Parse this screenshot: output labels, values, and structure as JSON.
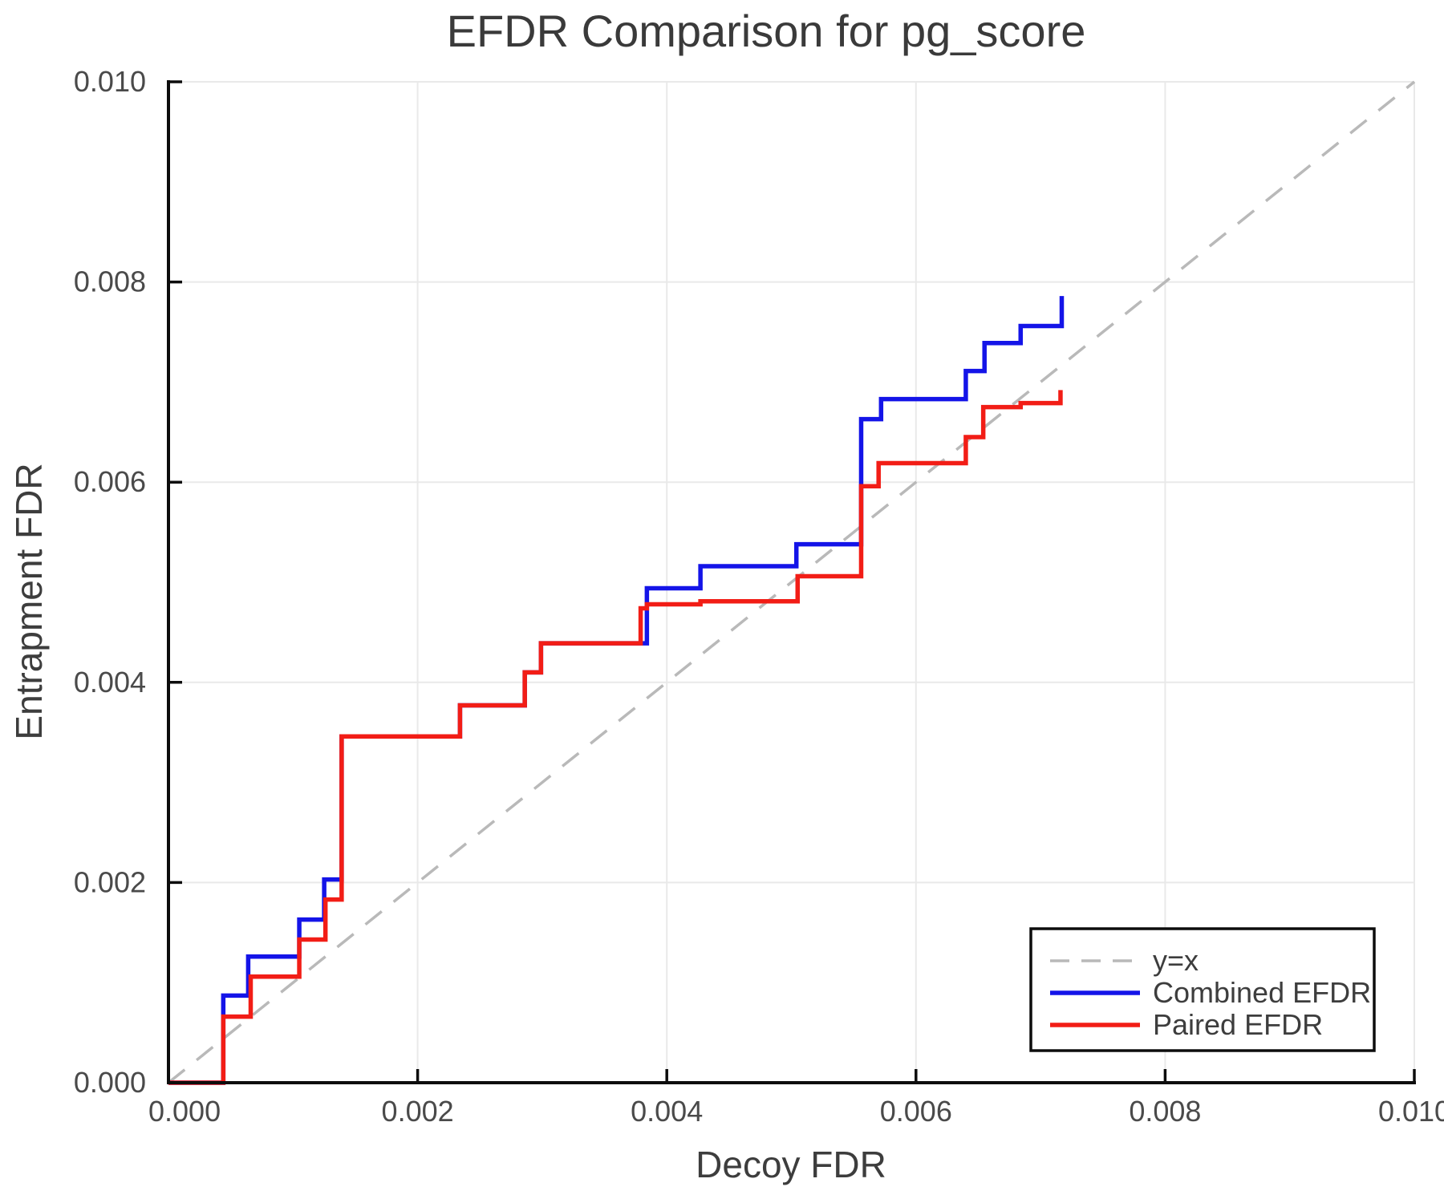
{
  "title": "EFDR Comparison for pg_score",
  "x_axis": {
    "label": "Decoy FDR",
    "tick_values": [
      0,
      0.002,
      0.004,
      0.006,
      0.008,
      0.01
    ],
    "tick_labels": [
      "0.000",
      "0.002",
      "0.004",
      "0.006",
      "0.008",
      "0.010"
    ]
  },
  "y_axis": {
    "label": "Entrapment FDR",
    "tick_values": [
      0,
      0.002,
      0.004,
      0.006,
      0.008,
      0.01
    ],
    "tick_labels": [
      "0.000",
      "0.002",
      "0.004",
      "0.006",
      "0.008",
      "0.010"
    ]
  },
  "legend": {
    "items": [
      {
        "label": "y=x",
        "color": "#b9b9b9",
        "dashed": true
      },
      {
        "label": "Combined EFDR",
        "color": "#1414e8",
        "dashed": false
      },
      {
        "label": "Paired EFDR",
        "color": "#f21d16",
        "dashed": false
      }
    ]
  },
  "colors": {
    "grid": "#e9e9e9",
    "spine": "#0d0d0d",
    "title_text": "#3a3a3a",
    "axis_text": "#3d3d3d",
    "tick_text": "#4a4a4a",
    "identity": "#b9b9b9",
    "combined": "#1414e8",
    "paired": "#f21d16"
  },
  "chart_data": {
    "type": "line",
    "title": "EFDR Comparison for pg_score",
    "xlabel": "Decoy FDR",
    "ylabel": "Entrapment FDR",
    "xlim": [
      0,
      0.01
    ],
    "ylim": [
      0,
      0.01
    ],
    "grid": true,
    "legend_position": "lower right",
    "series": [
      {
        "name": "y=x",
        "style": "dashed-line",
        "color": "#b9b9b9",
        "points": [
          [
            0,
            0
          ],
          [
            0.01,
            0.01
          ]
        ]
      },
      {
        "name": "Combined EFDR",
        "style": "step-post",
        "color": "#1414e8",
        "points": [
          [
            0.0,
            0.0
          ],
          [
            0.00044,
            0.00087
          ],
          [
            0.00064,
            0.00126
          ],
          [
            0.00105,
            0.00163
          ],
          [
            0.00125,
            0.00203
          ],
          [
            0.00139,
            0.00346
          ],
          [
            0.00234,
            0.00377
          ],
          [
            0.00286,
            0.0041
          ],
          [
            0.00299,
            0.00439
          ],
          [
            0.00384,
            0.00494
          ],
          [
            0.00427,
            0.00516
          ],
          [
            0.00504,
            0.00538
          ],
          [
            0.00556,
            0.00663
          ],
          [
            0.00572,
            0.00683
          ],
          [
            0.0064,
            0.00711
          ],
          [
            0.00655,
            0.00739
          ],
          [
            0.00684,
            0.00756
          ],
          [
            0.00717,
            0.00786
          ]
        ]
      },
      {
        "name": "Paired EFDR",
        "style": "step-post",
        "color": "#f21d16",
        "points": [
          [
            0.0,
            0.0
          ],
          [
            0.00044,
            0.00066
          ],
          [
            0.00066,
            0.00106
          ],
          [
            0.00105,
            0.00143
          ],
          [
            0.00126,
            0.00183
          ],
          [
            0.00139,
            0.00346
          ],
          [
            0.00234,
            0.00377
          ],
          [
            0.00286,
            0.0041
          ],
          [
            0.00299,
            0.00439
          ],
          [
            0.00379,
            0.00474
          ],
          [
            0.00384,
            0.00478
          ],
          [
            0.00427,
            0.00481
          ],
          [
            0.00505,
            0.00506
          ],
          [
            0.00556,
            0.00596
          ],
          [
            0.0057,
            0.00619
          ],
          [
            0.0064,
            0.00645
          ],
          [
            0.00654,
            0.00675
          ],
          [
            0.00684,
            0.00679
          ],
          [
            0.00716,
            0.00692
          ]
        ]
      }
    ]
  }
}
